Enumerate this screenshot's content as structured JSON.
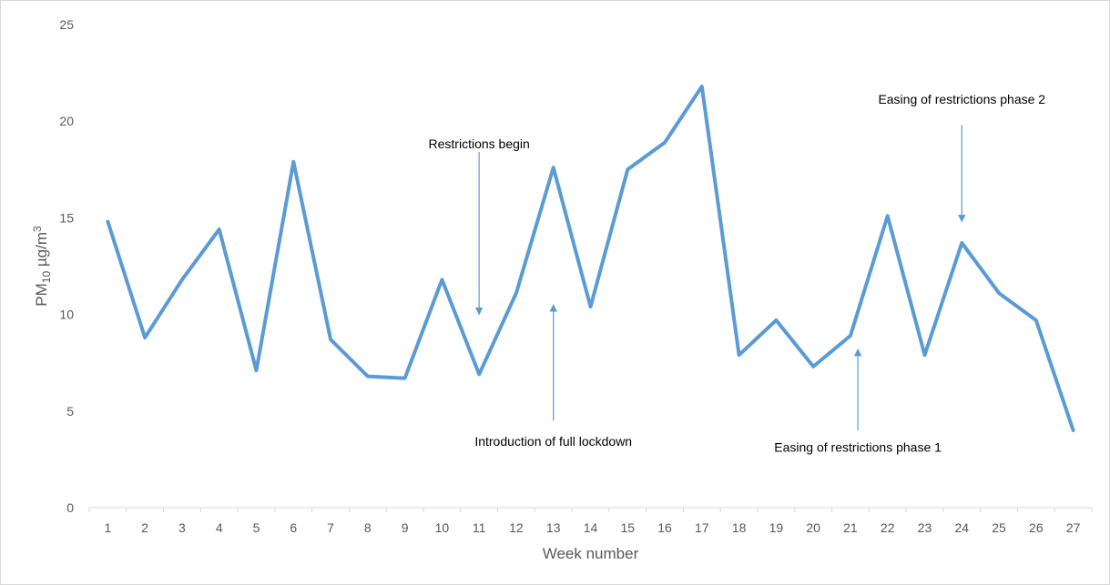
{
  "chart_data": {
    "type": "line",
    "title": "",
    "xlabel": "Week number",
    "ylabel": {
      "main": "PM",
      "sub": "10",
      "unit": " µg/m",
      "sup": "3"
    },
    "ylim": [
      0,
      25
    ],
    "yticks": [
      0,
      5,
      10,
      15,
      20,
      25
    ],
    "grid": false,
    "legend": "none",
    "line_color": "#5b9bd5",
    "annotation_color": "#5b9bd5",
    "categories": [
      "1",
      "2",
      "3",
      "4",
      "5",
      "6",
      "7",
      "8",
      "9",
      "10",
      "11",
      "12",
      "13",
      "14",
      "15",
      "16",
      "17",
      "18",
      "19",
      "20",
      "21",
      "22",
      "23",
      "24",
      "25",
      "26",
      "27"
    ],
    "series": [
      {
        "values": [
          14.8,
          8.8,
          11.8,
          14.4,
          7.1,
          17.9,
          8.7,
          6.8,
          6.7,
          11.8,
          6.9,
          11.1,
          17.6,
          10.4,
          17.5,
          18.9,
          21.8,
          7.9,
          9.7,
          7.3,
          8.9,
          15.1,
          7.9,
          13.7,
          11.1,
          9.7,
          4.0
        ]
      }
    ],
    "annotations": [
      {
        "text": "Restrictions begin",
        "week": 11,
        "direction": "down",
        "arrow_from": 18.4,
        "arrow_to": 10.0,
        "label_y": 18.6
      },
      {
        "text": "Introduction of full lockdown",
        "week": 13,
        "direction": "up",
        "arrow_from": 4.5,
        "arrow_to": 10.5,
        "label_y": 3.2
      },
      {
        "text": "Easing of restrictions phase 1",
        "week": 21.2,
        "direction": "up",
        "arrow_from": 4.0,
        "arrow_to": 8.2,
        "label_y": 2.9
      },
      {
        "text": "Easing of restrictions phase 2",
        "week": 24,
        "direction": "down",
        "arrow_from": 19.8,
        "arrow_to": 14.8,
        "label_y": 20.9
      }
    ]
  }
}
